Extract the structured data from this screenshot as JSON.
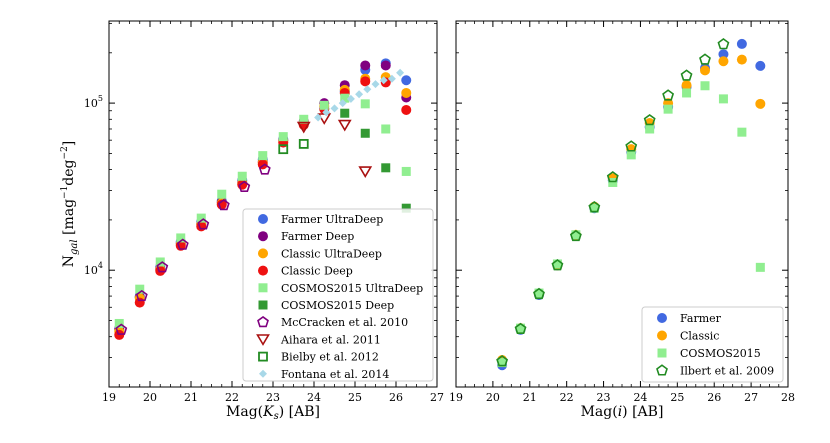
{
  "chart_data": [
    {
      "type": "scatter",
      "xlabel_prefix": "Mag(",
      "xlabel_var": "K",
      "xlabel_sub": "s",
      "xlabel_suffix": ") [AB]",
      "ylabel_main": "N",
      "ylabel_sub": "gal",
      "ylabel_unit_a": " [mag",
      "ylabel_unit_sup1": "−1",
      "ylabel_unit_b": "deg",
      "ylabel_unit_sup2": "−2",
      "ylabel_unit_c": "]",
      "xlim": [
        19,
        27
      ],
      "ylim": [
        2000,
        310000
      ],
      "yscale": "log",
      "xticks": [
        19,
        20,
        21,
        22,
        23,
        24,
        25,
        26,
        27
      ],
      "yticks": [
        {
          "value": 10000,
          "base": "10",
          "exp": "4"
        },
        {
          "value": 100000,
          "base": "10",
          "exp": "5"
        }
      ],
      "legend_position": "lower-right",
      "series": [
        {
          "name": "Farmer UltraDeep",
          "marker": "circle",
          "color": "#4169e1",
          "filled": true,
          "x": [
            19.25,
            19.75,
            20.25,
            20.75,
            21.25,
            21.75,
            22.25,
            22.75,
            23.25,
            23.75,
            24.25,
            24.75,
            25.25,
            25.75,
            26.25
          ],
          "y": [
            4500,
            7000,
            10500,
            14800,
            19500,
            26000,
            34500,
            46000,
            61000,
            75000,
            93000,
            118000,
            158000,
            173000,
            137000
          ]
        },
        {
          "name": "Farmer Deep",
          "marker": "circle",
          "color": "#800080",
          "filled": true,
          "x": [
            19.25,
            19.75,
            20.25,
            20.75,
            21.25,
            21.75,
            22.25,
            22.75,
            23.25,
            23.75,
            24.25,
            24.75,
            25.25,
            25.75,
            26.25
          ],
          "y": [
            4400,
            6900,
            10200,
            14500,
            19000,
            25500,
            33500,
            44500,
            60000,
            78000,
            100000,
            128000,
            168000,
            168000,
            108000
          ]
        },
        {
          "name": "Classic UltraDeep",
          "marker": "circle",
          "color": "#ffa500",
          "filled": true,
          "x": [
            19.25,
            19.75,
            20.25,
            20.75,
            21.25,
            21.75,
            22.25,
            22.75,
            23.25,
            23.75,
            24.25,
            24.75,
            25.25,
            25.75,
            26.25
          ],
          "y": [
            4300,
            6800,
            10100,
            14300,
            18800,
            25200,
            33000,
            44000,
            59000,
            76000,
            96000,
            120000,
            140000,
            143000,
            115000
          ]
        },
        {
          "name": "Classic Deep",
          "marker": "circle",
          "color": "#ee1111",
          "filled": true,
          "x": [
            19.25,
            19.75,
            20.25,
            20.75,
            21.25,
            21.75,
            22.25,
            22.75,
            23.25,
            23.75,
            24.25,
            24.75,
            25.25,
            25.75,
            26.25
          ],
          "y": [
            4100,
            6400,
            9900,
            14000,
            18300,
            24700,
            32500,
            43000,
            58000,
            74000,
            92000,
            115000,
            135000,
            133000,
            91000
          ]
        },
        {
          "name": "COSMOS2015 UltraDeep",
          "marker": "square",
          "color": "#90ee90",
          "filled": true,
          "x": [
            19.25,
            19.75,
            20.25,
            20.75,
            21.25,
            21.75,
            22.25,
            22.75,
            23.25,
            23.75,
            24.25,
            24.75,
            25.25,
            25.75,
            26.25
          ],
          "y": [
            4800,
            7700,
            11200,
            15600,
            20500,
            28500,
            36500,
            48500,
            63000,
            80000,
            97000,
            107000,
            99000,
            70000,
            39000
          ]
        },
        {
          "name": "COSMOS2015 Deep",
          "marker": "square",
          "color": "#339933",
          "filled": true,
          "x": [
            24.75,
            25.25,
            25.75,
            26.25
          ],
          "y": [
            87000,
            66000,
            41000,
            23500
          ]
        },
        {
          "name": "McCracken et al. 2010",
          "marker": "pentagon",
          "color": "#800080",
          "filled": false,
          "x": [
            19.3,
            19.8,
            20.3,
            20.8,
            21.3,
            21.8,
            22.3,
            22.8
          ],
          "y": [
            4400,
            7000,
            10400,
            14200,
            18800,
            24500,
            31500,
            40000
          ]
        },
        {
          "name": "Aihara et al. 2011",
          "marker": "triangle-down",
          "color": "#aa1111",
          "filled": false,
          "x": [
            23.75,
            24.25,
            24.75,
            25.25
          ],
          "y": [
            72000,
            81000,
            74000,
            39000
          ]
        },
        {
          "name": "Bielby et al. 2012",
          "marker": "square",
          "color": "#228b22",
          "filled": false,
          "x": [
            23.25,
            23.75
          ],
          "y": [
            53000,
            57000
          ]
        },
        {
          "name": "Fontana et al. 2014",
          "marker": "diamond",
          "color": "#a8d8e8",
          "filled": true,
          "x": [
            24.1,
            24.3,
            24.5,
            24.7,
            24.9,
            25.1,
            25.3,
            25.5,
            25.7,
            25.9,
            26.1
          ],
          "y": [
            82000,
            88000,
            93000,
            100000,
            106000,
            113000,
            121000,
            130000,
            137000,
            140000,
            152000
          ]
        }
      ]
    },
    {
      "type": "scatter",
      "xlabel_prefix": "Mag(",
      "xlabel_var": "i",
      "xlabel_suffix": ") [AB]",
      "xlim": [
        19,
        28
      ],
      "ylim": [
        2000,
        310000
      ],
      "yscale": "log",
      "xticks": [
        19,
        20,
        21,
        22,
        23,
        24,
        25,
        26,
        27,
        28
      ],
      "legend_position": "lower-right",
      "series": [
        {
          "name": "Farmer",
          "marker": "circle",
          "color": "#4169e1",
          "filled": true,
          "x": [
            20.25,
            20.75,
            21.25,
            21.75,
            22.25,
            22.75,
            23.25,
            23.75,
            24.25,
            24.75,
            25.25,
            25.75,
            26.25,
            26.75,
            27.25
          ],
          "y": [
            2700,
            4400,
            7100,
            10700,
            16200,
            23500,
            34500,
            51000,
            72000,
            95000,
            125000,
            162000,
            196000,
            226000,
            167000
          ]
        },
        {
          "name": "Classic",
          "marker": "circle",
          "color": "#ffa500",
          "filled": true,
          "x": [
            20.25,
            20.75,
            21.25,
            21.75,
            22.25,
            22.75,
            23.25,
            23.75,
            24.25,
            24.75,
            25.25,
            25.75,
            26.25,
            26.75,
            27.25
          ],
          "y": [
            2900,
            4500,
            7200,
            10700,
            16300,
            24000,
            35500,
            53000,
            76000,
            100000,
            128000,
            157000,
            178000,
            182000,
            99000
          ]
        },
        {
          "name": "COSMOS2015",
          "marker": "square",
          "color": "#90ee90",
          "filled": true,
          "x": [
            20.25,
            20.75,
            21.25,
            21.75,
            22.25,
            22.75,
            23.25,
            23.75,
            24.25,
            24.75,
            25.25,
            25.75,
            26.25,
            26.75,
            27.25
          ],
          "y": [
            2800,
            4500,
            7300,
            10900,
            16300,
            23500,
            33500,
            49000,
            70000,
            92000,
            115000,
            127000,
            106000,
            67000,
            10400
          ]
        },
        {
          "name": "Ilbert et al. 2009",
          "marker": "pentagon",
          "color": "#228b22",
          "filled": false,
          "x": [
            20.25,
            20.75,
            21.25,
            21.75,
            22.25,
            22.75,
            23.25,
            23.75,
            24.25,
            24.75,
            25.25,
            25.75,
            26.25
          ],
          "y": [
            2850,
            4450,
            7200,
            10700,
            16000,
            23800,
            36000,
            55000,
            79000,
            111000,
            146000,
            182000,
            225000
          ]
        }
      ]
    }
  ]
}
